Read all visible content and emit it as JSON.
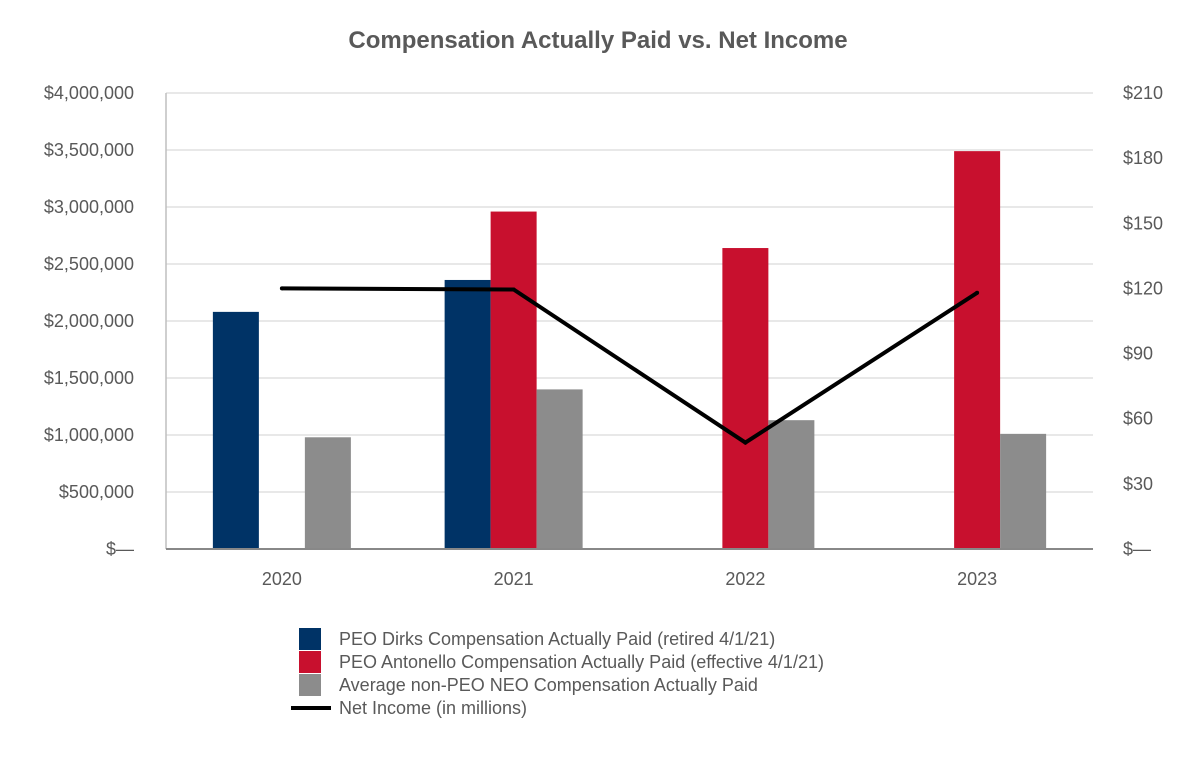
{
  "chart_data": {
    "type": "bar",
    "title": "Compensation Actually Paid vs. Net Income",
    "categories": [
      "2020",
      "2021",
      "2022",
      "2023"
    ],
    "series": [
      {
        "name": "PEO Dirks Compensation Actually Paid (retired 4/1/21)",
        "type": "bar",
        "axis": "left",
        "color": "#003366",
        "values": [
          2080000,
          2360000,
          null,
          null
        ]
      },
      {
        "name": "PEO Antonello Compensation Actually Paid (effective 4/1/21)",
        "type": "bar",
        "axis": "left",
        "color": "#C8102E",
        "values": [
          null,
          2960000,
          2640000,
          3490000
        ]
      },
      {
        "name": "Average non-PEO NEO Compensation Actually Paid",
        "type": "bar",
        "axis": "left",
        "color": "#8C8C8C",
        "values": [
          980000,
          1400000,
          1130000,
          1010000
        ]
      },
      {
        "name": "Net Income (in millions)",
        "type": "line",
        "axis": "right",
        "color": "#000000",
        "values": [
          120,
          119.5,
          49,
          118
        ]
      }
    ],
    "y_left": {
      "min": 0,
      "max": 4000000,
      "ticks": [
        0,
        500000,
        1000000,
        1500000,
        2000000,
        2500000,
        3000000,
        3500000,
        4000000
      ],
      "tick_labels": [
        "$—",
        "$500,000",
        "$1,000,000",
        "$1,500,000",
        "$2,000,000",
        "$2,500,000",
        "$3,000,000",
        "$3,500,000",
        "$4,000,000"
      ]
    },
    "y_right": {
      "min": 0,
      "max": 210,
      "ticks": [
        0,
        30,
        60,
        90,
        120,
        150,
        180,
        210
      ],
      "tick_labels": [
        "$—",
        "$30",
        "$60",
        "$90",
        "$120",
        "$150",
        "$180",
        "$210"
      ]
    },
    "grid": true,
    "legend_position": "bottom"
  }
}
